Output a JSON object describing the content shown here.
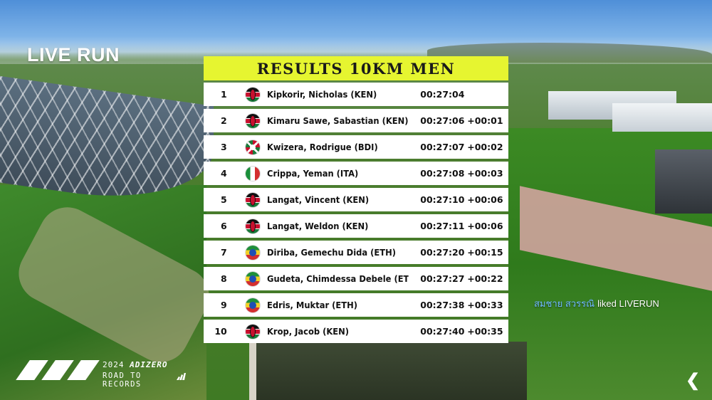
{
  "stream": {
    "live_label": "LIVE RUN",
    "like_notice": {
      "user": "สมชาย สวรรณิ",
      "text": "liked LIVERUN"
    }
  },
  "results": {
    "title": "RESULTS 10KM MEN",
    "rows": [
      {
        "rank": "1",
        "flag": "flag-ken",
        "name": "Kipkorir, Nicholas (KEN)",
        "time": "00:27:04",
        "gap": ""
      },
      {
        "rank": "2",
        "flag": "flag-ken",
        "name": "Kimaru Sawe, Sabastian (KEN)",
        "time": "00:27:06",
        "gap": "+00:01"
      },
      {
        "rank": "3",
        "flag": "flag-bdi",
        "name": "Kwizera, Rodrigue (BDI)",
        "time": "00:27:07",
        "gap": "+00:02"
      },
      {
        "rank": "4",
        "flag": "flag-ita",
        "name": "Crippa, Yeman (ITA)",
        "time": "00:27:08",
        "gap": "+00:03"
      },
      {
        "rank": "5",
        "flag": "flag-ken",
        "name": "Langat, Vincent (KEN)",
        "time": "00:27:10",
        "gap": "+00:06"
      },
      {
        "rank": "6",
        "flag": "flag-ken",
        "name": "Langat, Weldon (KEN)",
        "time": "00:27:11",
        "gap": "+00:06"
      },
      {
        "rank": "7",
        "flag": "flag-eth",
        "name": "Diriba, Gemechu Dida (ETH)",
        "time": "00:27:20",
        "gap": "+00:15"
      },
      {
        "rank": "8",
        "flag": "flag-eth",
        "name": "Gudeta, Chimdessa Debele (ETH)",
        "time": "00:27:27",
        "gap": "+00:22"
      },
      {
        "rank": "9",
        "flag": "flag-eth",
        "name": "Edris, Muktar (ETH)",
        "time": "00:27:38",
        "gap": "+00:33"
      },
      {
        "rank": "10",
        "flag": "flag-ken",
        "name": "Krop, Jacob (KEN)",
        "time": "00:27:40",
        "gap": "+00:35"
      }
    ]
  },
  "branding": {
    "year": "2024",
    "series": "ADIZERO",
    "tagline": "ROAD TO RECORDS"
  },
  "nav": {
    "next_icon": "chevron-right-icon"
  },
  "colors": {
    "header_accent": "#e6f530",
    "like_user": "#6fb8ff"
  }
}
